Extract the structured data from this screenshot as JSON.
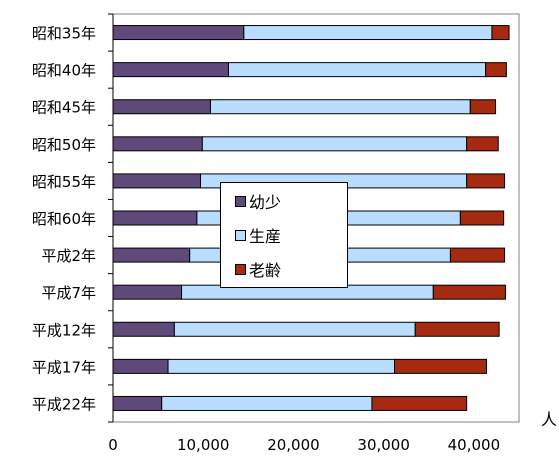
{
  "chart_data": {
    "type": "bar",
    "orientation": "horizontal",
    "stacked": true,
    "categories": [
      "昭和35年",
      "昭和40年",
      "昭和45年",
      "昭和50年",
      "昭和55年",
      "昭和60年",
      "平成2年",
      "平成7年",
      "平成12年",
      "平成17年",
      "平成22年"
    ],
    "series": [
      {
        "name": "幼少",
        "color": "#604A7B",
        "values": [
          14500,
          12800,
          10800,
          9900,
          9700,
          9300,
          8500,
          7600,
          6800,
          6100,
          5400
        ]
      },
      {
        "name": "生産",
        "color": "#B9DDFF",
        "values": [
          27500,
          28500,
          28800,
          29300,
          29500,
          29200,
          28900,
          27900,
          26700,
          25100,
          23300
        ]
      },
      {
        "name": "老齢",
        "color": "#A52A0F",
        "values": [
          1900,
          2300,
          2800,
          3500,
          4200,
          4800,
          6000,
          8000,
          9300,
          10200,
          10500
        ]
      }
    ],
    "xlim": [
      0,
      45000
    ],
    "xticks": [
      0,
      10000,
      20000,
      30000,
      40000
    ],
    "xtick_labels": [
      "0",
      "10,000",
      "20,000",
      "30,000",
      "40,000"
    ],
    "xlabel": "人",
    "ylabel": "",
    "title": "",
    "grid": false,
    "legend_position": "center"
  }
}
